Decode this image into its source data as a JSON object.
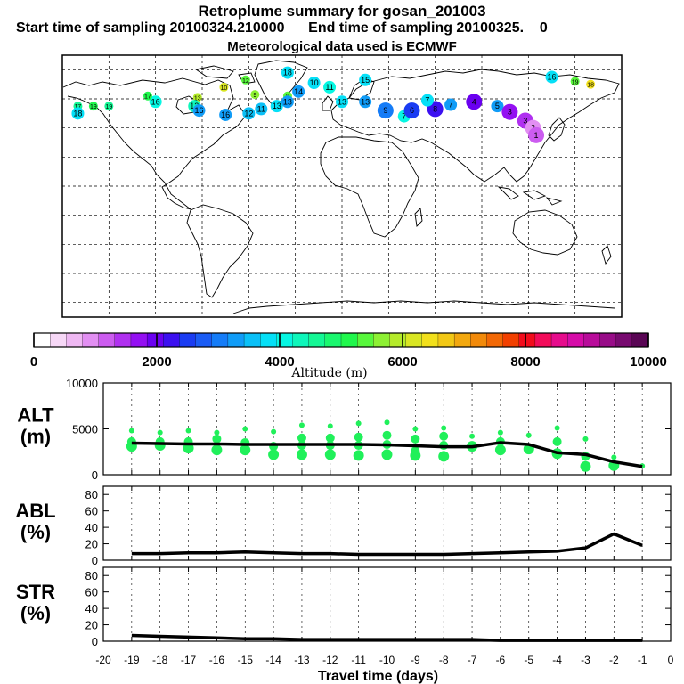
{
  "header": {
    "title": "Retroplume summary for gosan_201003",
    "subtitle_start": "Start time of sampling 20100324.210000",
    "subtitle_end": "End time of sampling 20100325.",
    "subtitle_end_tail": "0",
    "met_note": "Meteorological data used is ECMWF"
  },
  "colorbar": {
    "label": "Altitude (m)",
    "ticks": [
      "0",
      "2000",
      "4000",
      "6000",
      "8000",
      "10000"
    ],
    "range": [
      0,
      10000
    ],
    "colors": [
      "#ffffff",
      "#f7d8f7",
      "#efb8f3",
      "#e28ff2",
      "#cc5cf0",
      "#b030f0",
      "#9410f2",
      "#6a00f0",
      "#3c10f0",
      "#1a3cf2",
      "#1a5cf5",
      "#157cf7",
      "#109cf7",
      "#0ac0f7",
      "#05e0f7",
      "#06f7e3",
      "#0ef7bb",
      "#14f795",
      "#1af76f",
      "#20f74c",
      "#58f73c",
      "#8df033",
      "#b5eb2b",
      "#d9e623",
      "#f2e01c",
      "#f2c815",
      "#f2a80f",
      "#f28a0a",
      "#f26805",
      "#f24000",
      "#f20c1c",
      "#f20c5a",
      "#e60c8c",
      "#d60ca8",
      "#b80c9a",
      "#980c88",
      "#780a70",
      "#5a0655"
    ]
  },
  "chart_data": [
    {
      "type": "scatter+line",
      "panel": "ALT",
      "ylabel": "ALT",
      "yunit": "(m)",
      "ylim": [
        0,
        10000
      ],
      "yticks": [
        "0",
        "5000",
        "10000"
      ],
      "xlim": [
        -20,
        0
      ],
      "x": [
        -19,
        -18,
        -17,
        -16,
        -15,
        -14,
        -13,
        -12,
        -11,
        -10,
        -9,
        -8,
        -7,
        -6,
        -5,
        -4,
        -3,
        -2,
        -1
      ],
      "mean_line": [
        3450,
        3400,
        3350,
        3350,
        3300,
        3300,
        3300,
        3300,
        3300,
        3250,
        3150,
        3050,
        3050,
        3500,
        3300,
        2400,
        2200,
        1400,
        900
      ],
      "points": [
        {
          "x": -19,
          "y": [
            4800,
            3600,
            3100
          ]
        },
        {
          "x": -18,
          "y": [
            4600,
            3600,
            3200
          ]
        },
        {
          "x": -17,
          "y": [
            4800,
            3600,
            2900
          ]
        },
        {
          "x": -16,
          "y": [
            4600,
            3900,
            2700
          ]
        },
        {
          "x": -15,
          "y": [
            5000,
            3500,
            2700
          ]
        },
        {
          "x": -14,
          "y": [
            4700,
            3100,
            2200
          ]
        },
        {
          "x": -13,
          "y": [
            5400,
            4000,
            3200,
            2200
          ]
        },
        {
          "x": -12,
          "y": [
            5300,
            4000,
            3200,
            2200
          ]
        },
        {
          "x": -11,
          "y": [
            5600,
            4100,
            3200,
            2100
          ]
        },
        {
          "x": -10,
          "y": [
            5700,
            4300,
            3300,
            2200
          ]
        },
        {
          "x": -9,
          "y": [
            5000,
            3900,
            2600,
            2100
          ]
        },
        {
          "x": -8,
          "y": [
            5100,
            4200,
            3200,
            2000
          ]
        },
        {
          "x": -7,
          "y": [
            4200,
            3100
          ]
        },
        {
          "x": -6,
          "y": [
            4600,
            3600,
            2700
          ]
        },
        {
          "x": -5,
          "y": [
            4300,
            2800
          ]
        },
        {
          "x": -4,
          "y": [
            5100,
            3600,
            2300
          ]
        },
        {
          "x": -3,
          "y": [
            3900,
            2000,
            900
          ]
        },
        {
          "x": -2,
          "y": [
            1900,
            1000
          ]
        },
        {
          "x": -1,
          "y": [
            950
          ]
        }
      ]
    },
    {
      "type": "line",
      "panel": "ABL",
      "ylabel": "ABL",
      "yunit": "(%)",
      "ylim": [
        0,
        90
      ],
      "yticks": [
        "0",
        "20",
        "40",
        "60",
        "80"
      ],
      "x": [
        -19,
        -18,
        -17,
        -16,
        -15,
        -14,
        -13,
        -12,
        -11,
        -10,
        -9,
        -8,
        -7,
        -6,
        -5,
        -4,
        -3,
        -2,
        -1
      ],
      "values": [
        8,
        8,
        9,
        9,
        10,
        9,
        8,
        8,
        7,
        7,
        7,
        7,
        8,
        9,
        10,
        11,
        15,
        32,
        18
      ]
    },
    {
      "type": "line",
      "panel": "STR",
      "ylabel": "STR",
      "yunit": "(%)",
      "ylim": [
        0,
        90
      ],
      "yticks": [
        "0",
        "20",
        "40",
        "60",
        "80"
      ],
      "xlabel": "Travel time (days)",
      "xticks": [
        "-20",
        "-19",
        "-18",
        "-17",
        "-16",
        "-15",
        "-14",
        "-13",
        "-12",
        "-11",
        "-10",
        "-9",
        "-8",
        "-7",
        "-6",
        "-5",
        "-4",
        "-3",
        "-2",
        "-1",
        "0"
      ],
      "x": [
        -19,
        -18,
        -17,
        -16,
        -15,
        -14,
        -13,
        -12,
        -11,
        -10,
        -9,
        -8,
        -7,
        -6,
        -5,
        -4,
        -3,
        -2,
        -1
      ],
      "values": [
        7,
        6,
        5,
        4,
        3,
        3,
        2,
        2,
        2,
        2,
        2,
        2,
        2,
        1,
        1,
        1,
        1,
        1,
        1
      ]
    }
  ],
  "map": {
    "markers": [
      {
        "lon": -35,
        "lat": 78,
        "num": "18",
        "alt": 3800
      },
      {
        "lon": -62,
        "lat": 73,
        "num": "12",
        "alt": 5500
      },
      {
        "lon": -76,
        "lat": 68,
        "num": "10",
        "alt": 6200
      },
      {
        "lon": -28,
        "lat": 65,
        "num": "14",
        "alt": 3200
      },
      {
        "lon": -18,
        "lat": 71,
        "num": "10",
        "alt": 3900
      },
      {
        "lon": -8,
        "lat": 68,
        "num": "11",
        "alt": 4000
      },
      {
        "lon": -35,
        "lat": 62,
        "num": "8",
        "alt": 5300
      },
      {
        "lon": -56,
        "lat": 63,
        "num": "9",
        "alt": 5600
      },
      {
        "lon": -93,
        "lat": 61,
        "num": "13",
        "alt": 5800
      },
      {
        "lon": -120,
        "lat": 58,
        "num": "16",
        "alt": 4000
      },
      {
        "lon": -125,
        "lat": 62,
        "num": "17",
        "alt": 5000
      },
      {
        "lon": -95,
        "lat": 55,
        "num": "12",
        "alt": 4400
      },
      {
        "lon": -92,
        "lat": 52,
        "num": "16",
        "alt": 3200
      },
      {
        "lon": -75,
        "lat": 49,
        "num": "16",
        "alt": 3300
      },
      {
        "lon": -60,
        "lat": 50,
        "num": "12",
        "alt": 3500
      },
      {
        "lon": -52,
        "lat": 53,
        "num": "11",
        "alt": 3600
      },
      {
        "lon": -42,
        "lat": 55,
        "num": "13",
        "alt": 3700
      },
      {
        "lon": -35,
        "lat": 58,
        "num": "13",
        "alt": 3300
      },
      {
        "lon": 15,
        "lat": 73,
        "num": "15",
        "alt": 3900
      },
      {
        "lon": 0,
        "lat": 58,
        "num": "13",
        "alt": 3700
      },
      {
        "lon": 15,
        "lat": 58,
        "num": "13",
        "alt": 3200
      },
      {
        "lon": 28,
        "lat": 52,
        "num": "9",
        "alt": 2900
      },
      {
        "lon": 40,
        "lat": 48,
        "num": "7",
        "alt": 4000
      },
      {
        "lon": 45,
        "lat": 52,
        "num": "6",
        "alt": 2600
      },
      {
        "lon": 60,
        "lat": 53,
        "num": "8",
        "alt": 2200
      },
      {
        "lon": 70,
        "lat": 56,
        "num": "7",
        "alt": 3300
      },
      {
        "lon": 55,
        "lat": 59,
        "num": "7",
        "alt": 3700
      },
      {
        "lon": 85,
        "lat": 58,
        "num": "4",
        "alt": 2100
      },
      {
        "lon": 100,
        "lat": 55,
        "num": "5",
        "alt": 3300
      },
      {
        "lon": 108,
        "lat": 51,
        "num": "3",
        "alt": 1800
      },
      {
        "lon": 118,
        "lat": 45,
        "num": "3",
        "alt": 1500
      },
      {
        "lon": 123,
        "lat": 40,
        "num": "2",
        "alt": 1000
      },
      {
        "lon": 125,
        "lat": 35,
        "num": "1",
        "alt": 1100
      },
      {
        "lon": 150,
        "lat": 72,
        "num": "19",
        "alt": 5500
      },
      {
        "lon": 160,
        "lat": 70,
        "num": "18",
        "alt": 6500
      },
      {
        "lon": 135,
        "lat": 75,
        "num": "16",
        "alt": 3800
      },
      {
        "lon": -170,
        "lat": 55,
        "num": "17",
        "alt": 4500
      },
      {
        "lon": -160,
        "lat": 55,
        "num": "19",
        "alt": 5000
      },
      {
        "lon": -170,
        "lat": 50,
        "num": "18",
        "alt": 3800
      },
      {
        "lon": -150,
        "lat": 55,
        "num": "19",
        "alt": 4700
      }
    ]
  }
}
